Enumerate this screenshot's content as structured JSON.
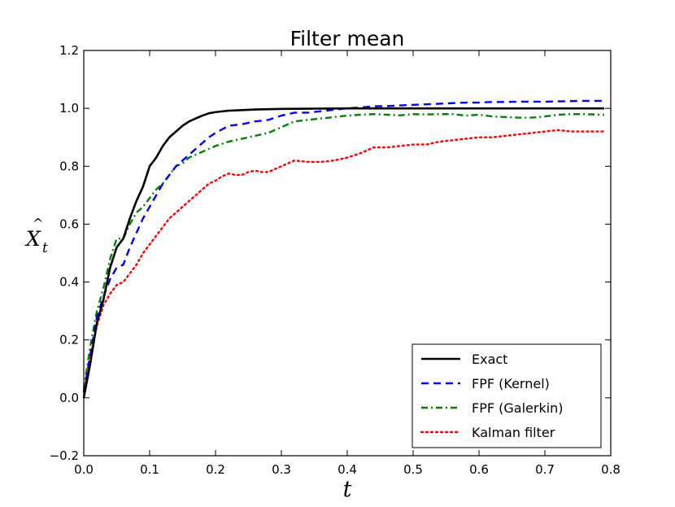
{
  "chart_data": {
    "type": "line",
    "title": "Filter mean",
    "xlabel": "t",
    "ylabel_base": "X",
    "ylabel_hat": "^",
    "ylabel_sub": "t",
    "xlim": [
      0.0,
      0.8
    ],
    "ylim": [
      -0.2,
      1.2
    ],
    "xticks": [
      0.0,
      0.1,
      0.2,
      0.3,
      0.4,
      0.5,
      0.6,
      0.7,
      0.8
    ],
    "xtick_labels": [
      "0.0",
      "0.1",
      "0.2",
      "0.3",
      "0.4",
      "0.5",
      "0.6",
      "0.7",
      "0.8"
    ],
    "yticks": [
      -0.2,
      0.0,
      0.2,
      0.4,
      0.6,
      0.8,
      1.0,
      1.2
    ],
    "ytick_labels": [
      "−0.2",
      "0.0",
      "0.2",
      "0.4",
      "0.6",
      "0.8",
      "1.0",
      "1.2"
    ],
    "grid": false,
    "legend_position": "bottom-right",
    "series": [
      {
        "name": "Exact",
        "color": "#000000",
        "style": "solid",
        "x": [
          0.0,
          0.01,
          0.02,
          0.03,
          0.04,
          0.05,
          0.06,
          0.07,
          0.08,
          0.09,
          0.1,
          0.11,
          0.12,
          0.13,
          0.14,
          0.15,
          0.16,
          0.17,
          0.18,
          0.19,
          0.2,
          0.22,
          0.24,
          0.26,
          0.28,
          0.3,
          0.35,
          0.4,
          0.5,
          0.6,
          0.7,
          0.79
        ],
        "y": [
          0.0,
          0.12,
          0.26,
          0.34,
          0.45,
          0.52,
          0.55,
          0.62,
          0.68,
          0.73,
          0.8,
          0.83,
          0.87,
          0.9,
          0.92,
          0.94,
          0.955,
          0.965,
          0.975,
          0.983,
          0.987,
          0.992,
          0.994,
          0.996,
          0.997,
          0.998,
          0.999,
          1.0,
          1.0,
          1.0,
          1.0,
          1.0
        ]
      },
      {
        "name": "FPF (Kernel)",
        "color": "#0000ff",
        "style": "dashed",
        "x": [
          0.0,
          0.01,
          0.02,
          0.03,
          0.04,
          0.05,
          0.06,
          0.07,
          0.08,
          0.09,
          0.1,
          0.11,
          0.12,
          0.13,
          0.14,
          0.15,
          0.16,
          0.17,
          0.18,
          0.19,
          0.2,
          0.22,
          0.24,
          0.26,
          0.28,
          0.3,
          0.32,
          0.34,
          0.36,
          0.38,
          0.4,
          0.42,
          0.44,
          0.46,
          0.48,
          0.5,
          0.52,
          0.54,
          0.56,
          0.58,
          0.6,
          0.62,
          0.64,
          0.66,
          0.68,
          0.7,
          0.72,
          0.74,
          0.76,
          0.79
        ],
        "y": [
          0.02,
          0.15,
          0.28,
          0.35,
          0.41,
          0.45,
          0.46,
          0.52,
          0.57,
          0.62,
          0.66,
          0.7,
          0.74,
          0.77,
          0.8,
          0.82,
          0.84,
          0.86,
          0.88,
          0.9,
          0.915,
          0.94,
          0.945,
          0.955,
          0.96,
          0.975,
          0.985,
          0.985,
          0.99,
          0.995,
          1.0,
          1.003,
          1.007,
          1.008,
          1.01,
          1.012,
          1.014,
          1.016,
          1.018,
          1.02,
          1.02,
          1.022,
          1.022,
          1.023,
          1.023,
          1.023,
          1.024,
          1.025,
          1.026,
          1.026
        ]
      },
      {
        "name": "FPF (Galerkin)",
        "color": "#008000",
        "style": "dashdot",
        "x": [
          0.0,
          0.01,
          0.02,
          0.03,
          0.04,
          0.05,
          0.06,
          0.07,
          0.08,
          0.09,
          0.1,
          0.11,
          0.12,
          0.13,
          0.14,
          0.15,
          0.16,
          0.17,
          0.18,
          0.19,
          0.2,
          0.22,
          0.24,
          0.26,
          0.28,
          0.3,
          0.32,
          0.34,
          0.36,
          0.38,
          0.4,
          0.42,
          0.44,
          0.46,
          0.48,
          0.5,
          0.52,
          0.54,
          0.56,
          0.58,
          0.6,
          0.62,
          0.64,
          0.66,
          0.68,
          0.7,
          0.72,
          0.74,
          0.76,
          0.79
        ],
        "y": [
          0.03,
          0.18,
          0.3,
          0.38,
          0.48,
          0.55,
          0.55,
          0.6,
          0.64,
          0.66,
          0.69,
          0.72,
          0.74,
          0.77,
          0.8,
          0.81,
          0.83,
          0.84,
          0.85,
          0.86,
          0.87,
          0.885,
          0.895,
          0.905,
          0.915,
          0.935,
          0.955,
          0.96,
          0.965,
          0.97,
          0.975,
          0.978,
          0.98,
          0.978,
          0.976,
          0.98,
          0.979,
          0.98,
          0.98,
          0.975,
          0.978,
          0.972,
          0.97,
          0.968,
          0.968,
          0.972,
          0.978,
          0.98,
          0.98,
          0.978
        ]
      },
      {
        "name": "Kalman filter",
        "color": "#ff0000",
        "style": "dotted",
        "x": [
          0.0,
          0.01,
          0.02,
          0.03,
          0.04,
          0.05,
          0.06,
          0.07,
          0.08,
          0.09,
          0.1,
          0.11,
          0.12,
          0.13,
          0.14,
          0.15,
          0.16,
          0.17,
          0.18,
          0.19,
          0.2,
          0.21,
          0.22,
          0.23,
          0.24,
          0.25,
          0.26,
          0.27,
          0.28,
          0.29,
          0.3,
          0.32,
          0.34,
          0.36,
          0.38,
          0.4,
          0.42,
          0.44,
          0.46,
          0.48,
          0.5,
          0.52,
          0.54,
          0.56,
          0.58,
          0.6,
          0.62,
          0.64,
          0.66,
          0.68,
          0.7,
          0.72,
          0.74,
          0.76,
          0.79
        ],
        "y": [
          0.02,
          0.14,
          0.25,
          0.32,
          0.36,
          0.39,
          0.4,
          0.43,
          0.46,
          0.5,
          0.53,
          0.56,
          0.59,
          0.62,
          0.64,
          0.66,
          0.68,
          0.7,
          0.72,
          0.74,
          0.75,
          0.765,
          0.775,
          0.77,
          0.77,
          0.78,
          0.785,
          0.78,
          0.78,
          0.79,
          0.8,
          0.82,
          0.815,
          0.815,
          0.82,
          0.83,
          0.845,
          0.865,
          0.865,
          0.87,
          0.875,
          0.875,
          0.885,
          0.89,
          0.895,
          0.9,
          0.9,
          0.905,
          0.91,
          0.915,
          0.92,
          0.925,
          0.92,
          0.92,
          0.92
        ]
      }
    ]
  }
}
